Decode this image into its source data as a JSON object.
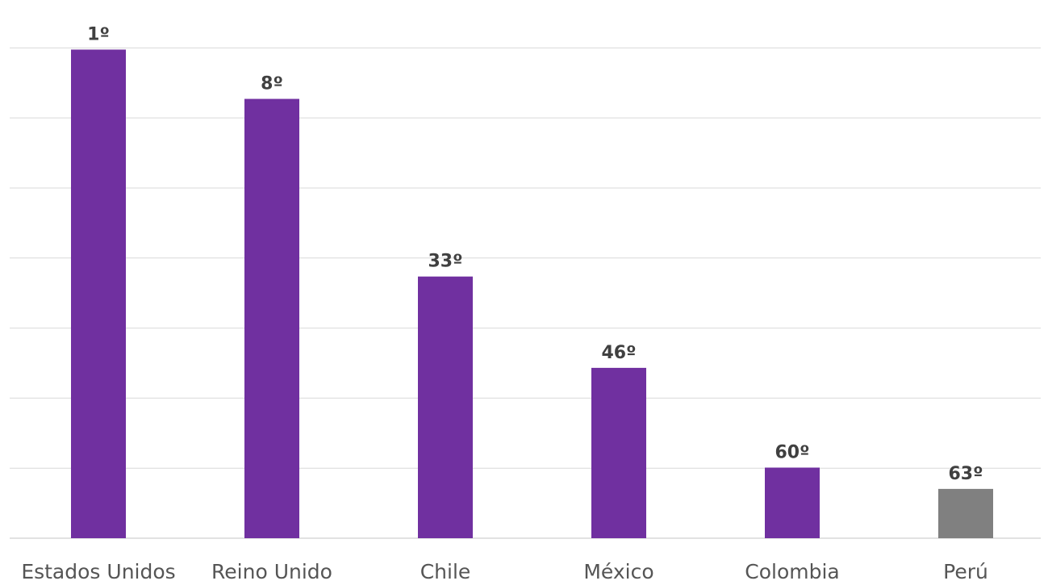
{
  "chart_data": {
    "type": "bar",
    "categories": [
      "Estados Unidos",
      "Reino Unido",
      "Chile",
      "México",
      "Colombia",
      "Perú"
    ],
    "values": [
      0.872,
      0.784,
      0.467,
      0.304,
      0.126,
      0.088
    ],
    "data_labels": [
      "1º",
      "8º",
      "33º",
      "46º",
      "60º",
      "63º"
    ],
    "ylim": [
      0,
      0.9
    ],
    "gridlines": [
      0,
      0.125,
      0.25,
      0.375,
      0.5,
      0.625,
      0.75,
      0.875
    ],
    "grid": true,
    "legend": "none",
    "title": "",
    "xlabel": "",
    "ylabel": "",
    "colors": [
      "#7030a0",
      "#7030a0",
      "#7030a0",
      "#7030a0",
      "#7030a0",
      "#808080"
    ],
    "gridline_color": "#d9d9d9"
  }
}
